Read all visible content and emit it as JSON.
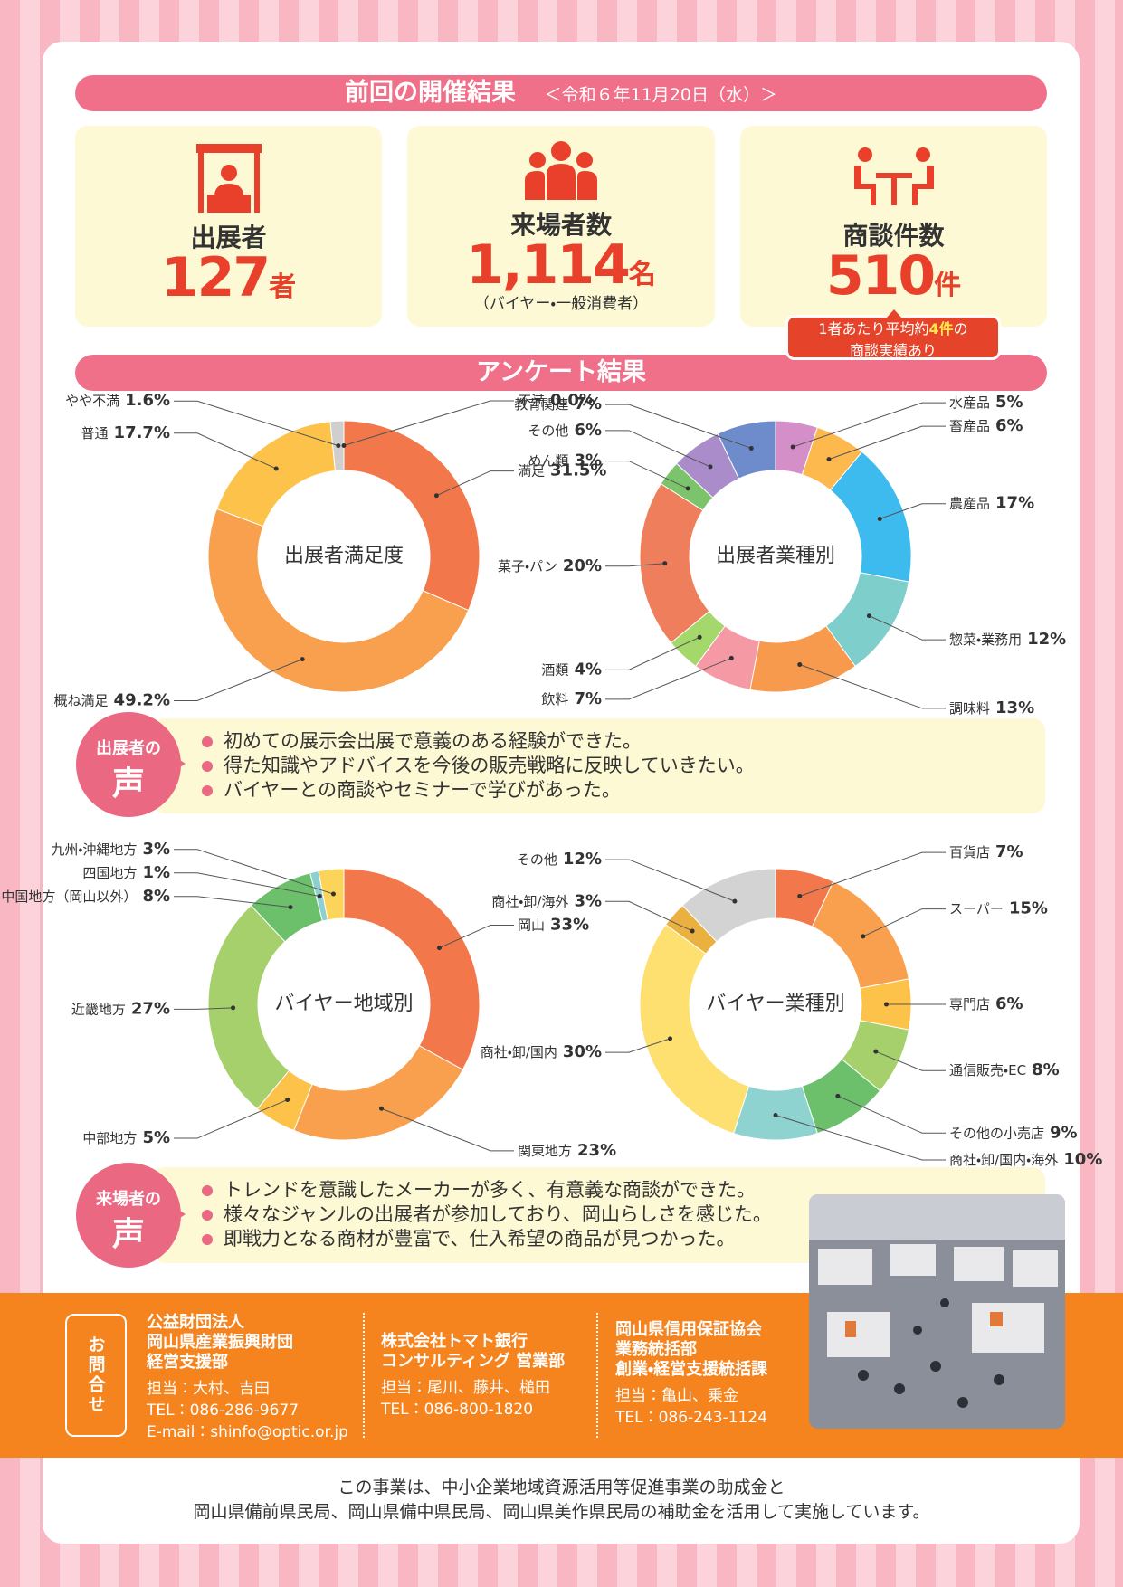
{
  "header": {
    "title": "前回の開催結果",
    "date": "＜令和６年11月20日（水）＞"
  },
  "stats": [
    {
      "label": "出展者",
      "value": "127",
      "unit": "者"
    },
    {
      "label": "来場者数",
      "value": "1,114",
      "unit": "名",
      "note": "（バイヤー・一般消費者）"
    },
    {
      "label": "商談件数",
      "value": "510",
      "unit": "件"
    }
  ],
  "callout": {
    "prefix": "1者あたり平均約",
    "highlight": "4件",
    "suffix": "の",
    "line2": "商談実績あり"
  },
  "survey_title": "アンケート結果",
  "chart_data": [
    {
      "type": "pie",
      "title": "出展者満足度",
      "categories": [
        "満足",
        "概ね満足",
        "普通",
        "やや不満",
        "不満"
      ],
      "values": [
        31.5,
        49.2,
        17.7,
        1.6,
        0.0
      ],
      "value_labels": [
        "31.5%",
        "49.2%",
        "17.7%",
        "1.6%",
        "0.0%"
      ],
      "colors": [
        "#f2784b",
        "#f9a04e",
        "#fdc24a",
        "#cfcfcf",
        "#bbbbbb"
      ]
    },
    {
      "type": "pie",
      "title": "出展者業種別",
      "categories": [
        "水産品",
        "畜産品",
        "農産品",
        "惣菜・業務用",
        "調味料",
        "飲料",
        "酒類",
        "菓子・パン",
        "めん類",
        "その他",
        "教育関連"
      ],
      "values": [
        5,
        6,
        17,
        12,
        13,
        7,
        4,
        20,
        3,
        6,
        7
      ],
      "value_labels": [
        "5%",
        "6%",
        "17%",
        "12%",
        "13%",
        "7%",
        "4%",
        "20%",
        "3%",
        "6%",
        "7%"
      ],
      "colors": [
        "#d48fc8",
        "#fdb84e",
        "#3dbbee",
        "#7ecfcb",
        "#f79a4e",
        "#f59aa5",
        "#a5d86b",
        "#ef7f5c",
        "#7cc46b",
        "#a98cc9",
        "#6e8ccb"
      ]
    },
    {
      "type": "pie",
      "title": "バイヤー地域別",
      "categories": [
        "岡山",
        "関東地方",
        "中部地方",
        "近畿地方",
        "中国地方（岡山以外）",
        "四国地方",
        "九州・沖縄地方"
      ],
      "values": [
        33,
        23,
        5,
        27,
        8,
        1,
        3
      ],
      "value_labels": [
        "33%",
        "23%",
        "5%",
        "27%",
        "8%",
        "1%",
        "3%"
      ],
      "colors": [
        "#f2784b",
        "#f9a04e",
        "#fdc24a",
        "#a5d06b",
        "#6cc06b",
        "#8ecfd0",
        "#fdd45a"
      ]
    },
    {
      "type": "pie",
      "title": "バイヤー業種別",
      "categories": [
        "百貨店",
        "スーパー",
        "専門店",
        "通信販売・EC",
        "その他の小売店",
        "商社・卸/国内・海外",
        "商社・卸/国内",
        "商社・卸/海外",
        "その他"
      ],
      "values": [
        7,
        15,
        6,
        8,
        9,
        10,
        30,
        3,
        12
      ],
      "value_labels": [
        "7%",
        "15%",
        "6%",
        "8%",
        "9%",
        "10%",
        "30%",
        "3%",
        "12%"
      ],
      "colors": [
        "#f2784b",
        "#f9a04e",
        "#fdc24a",
        "#a5d06b",
        "#6cc06b",
        "#8ed3d0",
        "#fde070",
        "#eab040",
        "#d3d3d3"
      ]
    }
  ],
  "exhibitor_voice": {
    "badge_top": "出展者の",
    "badge_main": "声",
    "items": [
      "初めての展示会出展で意義のある経験ができた。",
      "得た知識やアドバイスを今後の販売戦略に反映していきたい。",
      "バイヤーとの商談やセミナーで学びがあった。"
    ]
  },
  "visitor_voice": {
    "badge_top": "来場者の",
    "badge_main": "声",
    "items": [
      "トレンドを意識したメーカーが多く、有意義な商談ができた。",
      "様々なジャンルの出展者が参加しており、岡山らしさを感じた。",
      "即戦力となる商材が豊富で、仕入希望の商品が見つかった。"
    ]
  },
  "contact": {
    "label": "お問合せ",
    "orgs": [
      {
        "name_lines": [
          "公益財団法人",
          "岡山県産業振興財団",
          "経営支援部"
        ],
        "details": [
          "担当：大村、吉田",
          "TEL：086-286-9677",
          "E-mail：shinfo@optic.or.jp"
        ]
      },
      {
        "name_lines": [
          "株式会社トマト銀行",
          "コンサルティング 営業部"
        ],
        "details": [
          "担当：尾川、藤井、槌田",
          "TEL：086-800-1820"
        ]
      },
      {
        "name_lines": [
          "岡山県信用保証協会",
          "業務統括部",
          "創業・経営支援統括課"
        ],
        "details": [
          "担当：亀山、乗金",
          "TEL：086-243-1124"
        ]
      }
    ]
  },
  "footnote": [
    "この事業は、中小企業地域資源活用等促進事業の助成金と",
    "岡山県備前県民局、岡山県備中県民局、岡山県美作県民局の補助金を活用して実施しています。"
  ]
}
